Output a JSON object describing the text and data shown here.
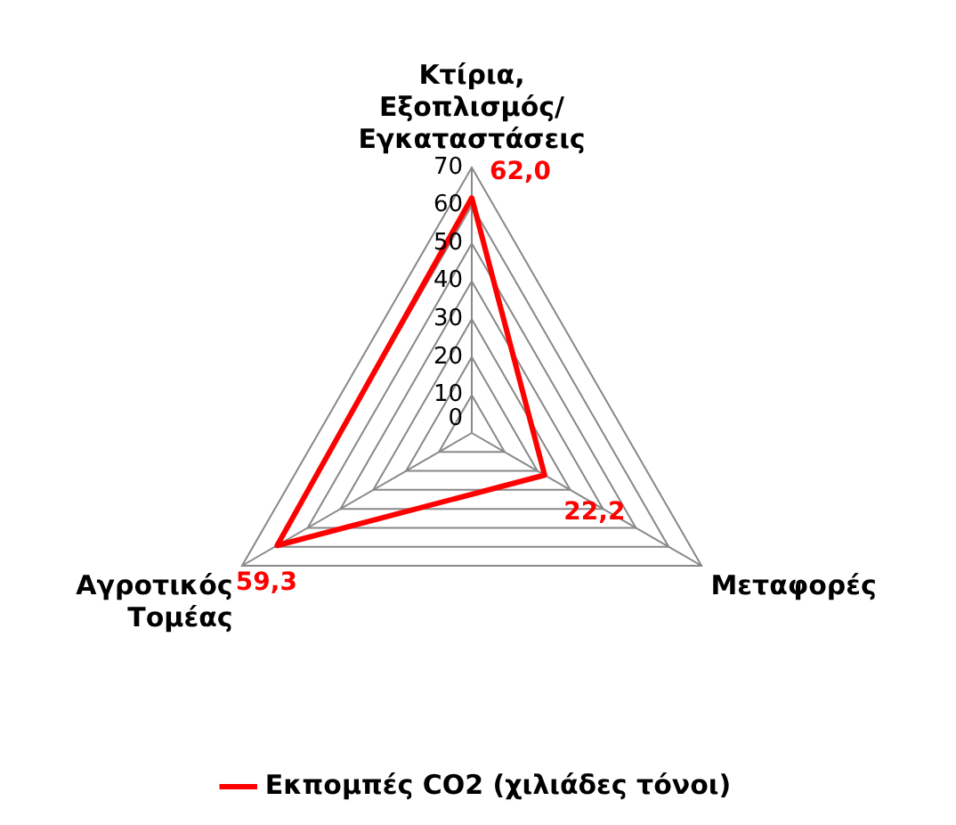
{
  "chart_data": {
    "type": "radar",
    "categories": [
      "Κτίρια, Εξοπλισμός/Εγκαταστάσεις",
      "Μεταφορές",
      "Αγροτικός Τομέας"
    ],
    "series": [
      {
        "name": "Εκπομπές CO2 (χιλιάδες τόνοι)",
        "color": "#ff0000",
        "values": [
          62.0,
          22.2,
          59.3
        ],
        "value_labels": [
          "62,0",
          "22,2",
          "59,3"
        ]
      }
    ],
    "ylim": [
      0,
      70
    ],
    "yticks": [
      0,
      10,
      20,
      30,
      40,
      50,
      60,
      70
    ],
    "grid": true,
    "legend": "bottom",
    "marker": "none",
    "line_style": "solid"
  }
}
